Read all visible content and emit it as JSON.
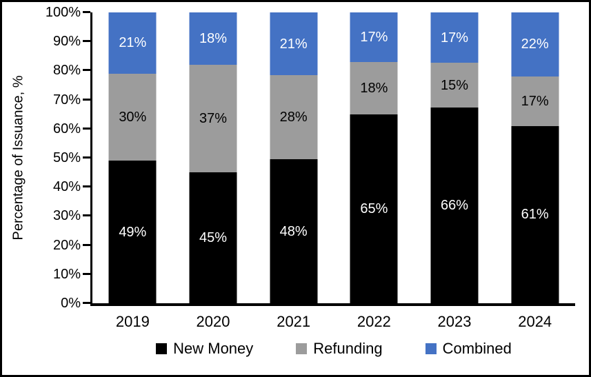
{
  "chart_data": {
    "type": "bar",
    "stacked": true,
    "title": "",
    "xlabel": "",
    "ylabel": "Percentage of Issuance, %",
    "categories": [
      "2019",
      "2020",
      "2021",
      "2022",
      "2023",
      "2024"
    ],
    "series": [
      {
        "name": "New Money",
        "color": "#000000",
        "label_color": "#FFFFFF",
        "values": [
          49,
          45,
          48,
          65,
          66,
          61
        ]
      },
      {
        "name": "Refunding",
        "color": "#9C9C9C",
        "label_color": "#000000",
        "values": [
          30,
          37,
          28,
          18,
          15,
          17
        ]
      },
      {
        "name": "Combined",
        "color": "#4472C4",
        "label_color": "#FFFFFF",
        "values": [
          21,
          18,
          21,
          17,
          17,
          22
        ]
      }
    ],
    "value_suffix": "%",
    "ylim": [
      0,
      100
    ],
    "y_tick_labels": [
      "0%",
      "10%",
      "20%",
      "30%",
      "40%",
      "50%",
      "60%",
      "70%",
      "80%",
      "90%",
      "100%"
    ],
    "legend_position": "bottom",
    "grid": false,
    "axis_color": "#000000",
    "background": "#FFFFFF"
  }
}
